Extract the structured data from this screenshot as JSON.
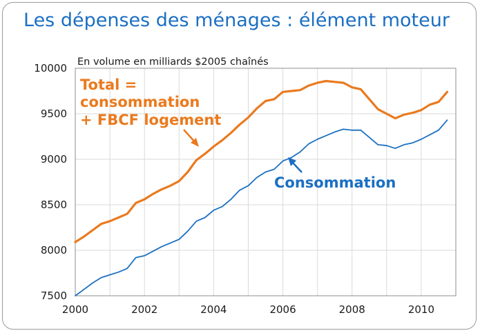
{
  "page": {
    "title": "Les dépenses des ménages : élément moteur"
  },
  "chart_data": {
    "type": "line",
    "title": "Les dépenses des ménages : élément moteur",
    "subtitle": "En volume en milliards $2005 chaînés",
    "xlabel": "",
    "ylabel": "",
    "xlim": [
      2000,
      2011
    ],
    "ylim": [
      7500,
      10000
    ],
    "x_ticks": [
      "2000",
      "2002",
      "2004",
      "2006",
      "2008",
      "2010"
    ],
    "y_ticks": [
      "7500",
      "8000",
      "8500",
      "9000",
      "9500",
      "10000"
    ],
    "grid": true,
    "colors": {
      "total": "#ea7a1e",
      "consommation": "#1b6fc2",
      "grid": "#d9d9d9"
    },
    "x": [
      2000.0,
      2000.25,
      2000.5,
      2000.75,
      2001.0,
      2001.25,
      2001.5,
      2001.75,
      2002.0,
      2002.25,
      2002.5,
      2002.75,
      2003.0,
      2003.25,
      2003.5,
      2003.75,
      2004.0,
      2004.25,
      2004.5,
      2004.75,
      2005.0,
      2005.25,
      2005.5,
      2005.75,
      2006.0,
      2006.25,
      2006.5,
      2006.75,
      2007.0,
      2007.25,
      2007.5,
      2007.75,
      2008.0,
      2008.25,
      2008.5,
      2008.75,
      2009.0,
      2009.25,
      2009.5,
      2009.75,
      2010.0,
      2010.25,
      2010.5,
      2010.75
    ],
    "series": [
      {
        "key": "total",
        "values": [
          8090,
          8150,
          8220,
          8290,
          8320,
          8360,
          8400,
          8520,
          8560,
          8620,
          8670,
          8710,
          8760,
          8860,
          8990,
          9060,
          9140,
          9210,
          9290,
          9380,
          9460,
          9560,
          9640,
          9660,
          9740,
          9750,
          9760,
          9810,
          9840,
          9860,
          9850,
          9840,
          9790,
          9770,
          9660,
          9550,
          9500,
          9450,
          9490,
          9510,
          9540,
          9600,
          9630,
          9740
        ]
      },
      {
        "key": "consommation",
        "values": [
          7500,
          7570,
          7640,
          7700,
          7730,
          7760,
          7800,
          7920,
          7940,
          7990,
          8040,
          8080,
          8120,
          8210,
          8320,
          8360,
          8440,
          8480,
          8560,
          8660,
          8710,
          8800,
          8860,
          8890,
          8980,
          9020,
          9080,
          9170,
          9220,
          9260,
          9300,
          9330,
          9320,
          9320,
          9240,
          9160,
          9150,
          9120,
          9160,
          9180,
          9220,
          9270,
          9320,
          9430
        ]
      }
    ],
    "annotations": {
      "total_lines": [
        "Total =",
        "consommation",
        "+ FBCF logement"
      ],
      "consommation": "Consommation"
    }
  }
}
